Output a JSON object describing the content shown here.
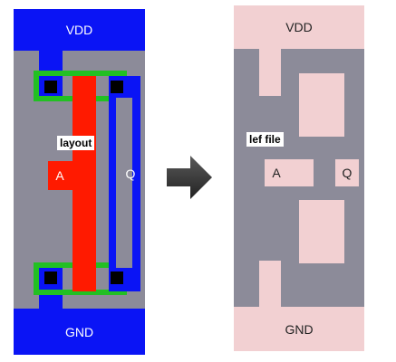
{
  "layout_panel": {
    "vdd_label": "VDD",
    "gnd_label": "GND",
    "title_tag": "layout",
    "input_label": "A",
    "output_label": "Q"
  },
  "lef_panel": {
    "vdd_label": "VDD",
    "gnd_label": "GND",
    "title_tag": "lef file",
    "input_label": "A",
    "output_label": "Q"
  },
  "arrow_icon": "right-arrow-icon",
  "colors": {
    "metal_rail": "#0a14f5",
    "poly": "#ff1a00",
    "diffusion": "#22c023",
    "substrate": "#8c8b99",
    "contact": "#000000",
    "lef_bg": "#8c8b99",
    "lef_shape": "#f2d0d2",
    "arrow": "#3c3c3c"
  }
}
